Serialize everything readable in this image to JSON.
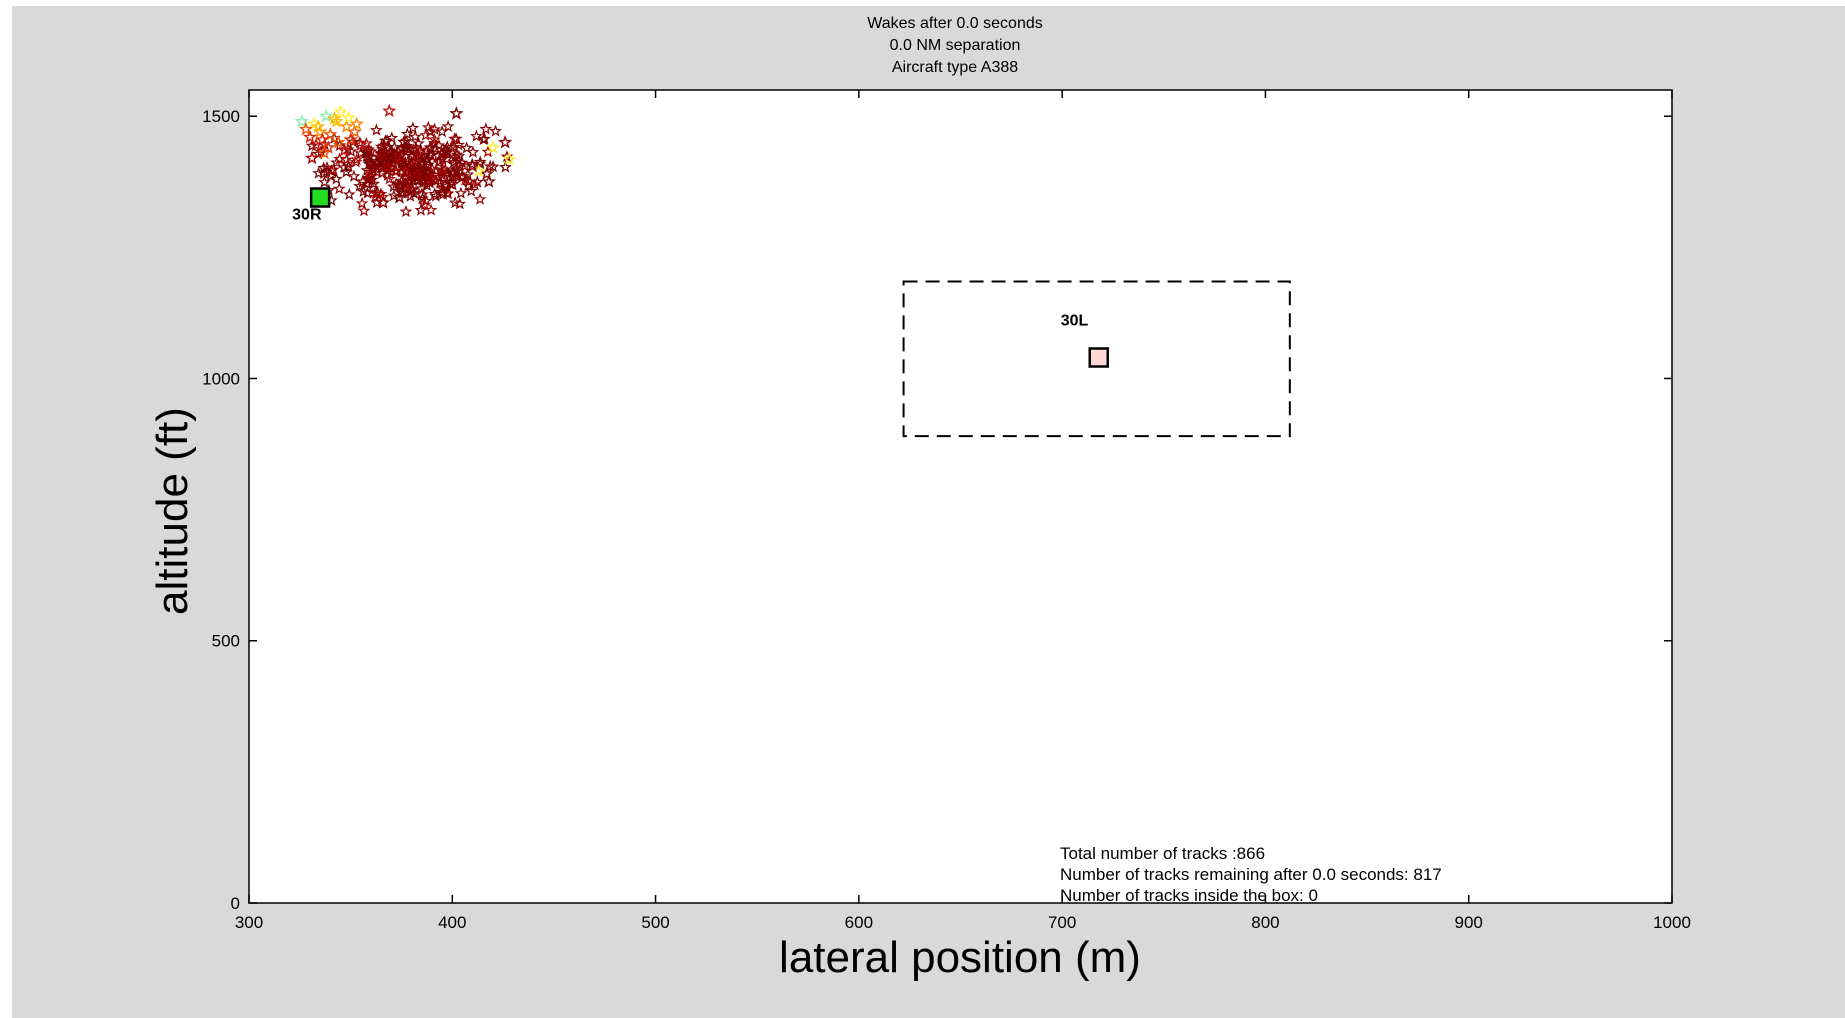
{
  "chart_data": {
    "type": "scatter",
    "title_lines": [
      "Wakes after 0.0 seconds",
      "0.0 NM separation",
      "Aircraft type A388"
    ],
    "xlabel": "lateral position (m)",
    "ylabel": "altitude (ft)",
    "xlim": [
      300,
      1000
    ],
    "ylim": [
      0,
      1550
    ],
    "xticks": [
      300,
      400,
      500,
      600,
      700,
      800,
      900,
      1000
    ],
    "yticks": [
      0,
      500,
      1000,
      1500
    ],
    "grid": false,
    "runways": [
      {
        "label": "30R",
        "x": 335,
        "y": 1345,
        "fill": "#22dd22"
      },
      {
        "label": "30L",
        "x": 718,
        "y": 1040,
        "fill": "#ffd6d6"
      }
    ],
    "safety_box": {
      "x": [
        622,
        812
      ],
      "y": [
        890,
        1185
      ]
    },
    "annotations": [
      "Total number of tracks :866",
      "Number of tracks remaining after 0.0 seconds: 817",
      "Number of tracks inside the box: 0"
    ],
    "cluster": {
      "colors": [
        "#7a0000",
        "#8b0000",
        "#a50000",
        "#c01010",
        "#dd2200",
        "#ee5500",
        "#ff8800",
        "#ffbb00",
        "#ffee33",
        "#88eeaa"
      ],
      "core": {
        "x_center": 380,
        "y_center": 1400,
        "x_spread": 20,
        "y_spread": 35
      },
      "points": [
        {
          "x": 332,
          "y": 1485,
          "c": 8
        },
        {
          "x": 338,
          "y": 1500,
          "c": 9
        },
        {
          "x": 345,
          "y": 1508,
          "c": 8
        },
        {
          "x": 342,
          "y": 1495,
          "c": 7
        },
        {
          "x": 335,
          "y": 1470,
          "c": 6
        },
        {
          "x": 340,
          "y": 1465,
          "c": 5
        },
        {
          "x": 348,
          "y": 1480,
          "c": 6
        },
        {
          "x": 352,
          "y": 1470,
          "c": 5
        },
        {
          "x": 336,
          "y": 1455,
          "c": 4
        },
        {
          "x": 344,
          "y": 1450,
          "c": 5
        },
        {
          "x": 350,
          "y": 1455,
          "c": 4
        },
        {
          "x": 330,
          "y": 1460,
          "c": 4
        },
        {
          "x": 326,
          "y": 1490,
          "c": 9
        },
        {
          "x": 333,
          "y": 1445,
          "c": 3
        },
        {
          "x": 339,
          "y": 1440,
          "c": 4
        },
        {
          "x": 355,
          "y": 1445,
          "c": 3
        },
        {
          "x": 347,
          "y": 1435,
          "c": 3
        },
        {
          "x": 331,
          "y": 1420,
          "c": 2
        },
        {
          "x": 337,
          "y": 1430,
          "c": 5
        },
        {
          "x": 343,
          "y": 1490,
          "c": 7
        },
        {
          "x": 349,
          "y": 1497,
          "c": 8
        },
        {
          "x": 334,
          "y": 1480,
          "c": 7
        },
        {
          "x": 353,
          "y": 1485,
          "c": 6
        },
        {
          "x": 328,
          "y": 1475,
          "c": 5
        },
        {
          "x": 369,
          "y": 1510,
          "c": 3
        },
        {
          "x": 402,
          "y": 1505,
          "c": 0
        },
        {
          "x": 426,
          "y": 1450,
          "c": 1
        },
        {
          "x": 428,
          "y": 1418,
          "c": 8
        },
        {
          "x": 420,
          "y": 1440,
          "c": 8
        },
        {
          "x": 417,
          "y": 1390,
          "c": 1
        },
        {
          "x": 413,
          "y": 1395,
          "c": 8
        },
        {
          "x": 418,
          "y": 1375,
          "c": 0
        },
        {
          "x": 410,
          "y": 1405,
          "c": 1
        },
        {
          "x": 405,
          "y": 1385,
          "c": 0
        },
        {
          "x": 400,
          "y": 1370,
          "c": 1
        },
        {
          "x": 395,
          "y": 1355,
          "c": 0
        },
        {
          "x": 385,
          "y": 1350,
          "c": 1
        },
        {
          "x": 374,
          "y": 1345,
          "c": 0
        },
        {
          "x": 366,
          "y": 1335,
          "c": 1
        },
        {
          "x": 360,
          "y": 1385,
          "c": 2
        },
        {
          "x": 356,
          "y": 1375,
          "c": 1
        }
      ]
    }
  }
}
